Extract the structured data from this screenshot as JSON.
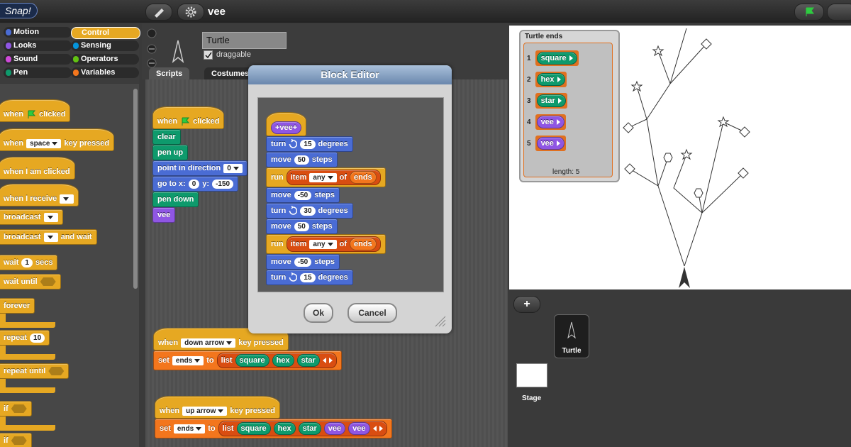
{
  "topbar": {
    "logo": "Snap!",
    "project": "vee"
  },
  "categories": [
    {
      "name": "Motion",
      "color": "#4a6cd4"
    },
    {
      "name": "Control",
      "color": "#e6a822",
      "selected": true
    },
    {
      "name": "Looks",
      "color": "#8f56e3"
    },
    {
      "name": "Sensing",
      "color": "#0494dc"
    },
    {
      "name": "Sound",
      "color": "#cf4ad9"
    },
    {
      "name": "Operators",
      "color": "#62c213"
    },
    {
      "name": "Pen",
      "color": "#0e9a6c"
    },
    {
      "name": "Variables",
      "color": "#f3761d"
    }
  ],
  "palette": {
    "color": "#e6a822",
    "blocks": [
      {
        "hat": true,
        "parts": [
          "when",
          "clicked"
        ],
        "icon": "flag"
      },
      {
        "hat": true,
        "parts": [
          "when",
          {
            "dropdown": "space"
          },
          "key pressed"
        ]
      },
      {
        "hat": true,
        "parts": [
          "when I am clicked"
        ]
      },
      {
        "hat": true,
        "parts": [
          "when I receive",
          {
            "empty": "dropdown"
          }
        ]
      },
      {
        "parts": [
          "broadcast",
          {
            "empty": "dropdown"
          }
        ]
      },
      {
        "parts": [
          "broadcast",
          {
            "empty": "dropdown"
          },
          "and wait"
        ]
      },
      {
        "parts": [
          "wait",
          {
            "input": "1"
          },
          "secs"
        ]
      },
      {
        "parts": [
          "wait until",
          {
            "empty": "boolean"
          }
        ]
      },
      {
        "parts": [
          "forever"
        ],
        "shape": "c"
      },
      {
        "parts": [
          "repeat",
          {
            "input": "10"
          }
        ],
        "shape": "c"
      },
      {
        "parts": [
          "repeat until",
          {
            "empty": "boolean"
          }
        ],
        "shape": "c"
      },
      {
        "parts": [
          "if",
          {
            "empty": "boolean"
          }
        ],
        "shape": "c"
      },
      {
        "parts": [
          "if",
          {
            "empty": "boolean"
          }
        ]
      }
    ]
  },
  "sprite": {
    "name": "Turtle",
    "draggable": "draggable",
    "tabs": [
      "Scripts",
      "Costumes"
    ]
  },
  "scripts": [
    {
      "blocks": [
        {
          "color": "#e6a822",
          "hat": true,
          "parts": [
            "when",
            "clicked"
          ],
          "icon": "flag"
        },
        {
          "color": "#0e9a6c",
          "parts": [
            "clear"
          ]
        },
        {
          "color": "#0e9a6c",
          "parts": [
            "pen up"
          ]
        },
        {
          "color": "#4a6cd4",
          "parts": [
            "point in direction",
            {
              "dropdown": "0"
            }
          ]
        },
        {
          "color": "#4a6cd4",
          "parts": [
            "go to x:",
            {
              "input": "0"
            },
            "y:",
            {
              "input": "-150"
            }
          ]
        },
        {
          "color": "#0e9a6c",
          "parts": [
            "pen down"
          ]
        },
        {
          "color": "#8f56e3",
          "parts": [
            "vee"
          ]
        }
      ]
    },
    {
      "blocks": [
        {
          "color": "#e6a822",
          "hat": true,
          "parts": [
            "when",
            {
              "dropdown": "down arrow"
            },
            "key pressed"
          ]
        },
        {
          "color": "#f3761d",
          "parts": [
            "set",
            {
              "dropdown": "ends"
            },
            "to",
            {
              "reporter": {
                "color": "#d94d11",
                "variadic": true,
                "parts": [
                  "list",
                  {
                    "reporter": {
                      "color": "#0e9a6c",
                      "parts": [
                        "square"
                      ]
                    }
                  },
                  {
                    "reporter": {
                      "color": "#0e9a6c",
                      "parts": [
                        "hex"
                      ]
                    }
                  },
                  {
                    "reporter": {
                      "color": "#0e9a6c",
                      "parts": [
                        "star"
                      ]
                    }
                  }
                ]
              }
            }
          ]
        }
      ]
    },
    {
      "blocks": [
        {
          "color": "#e6a822",
          "hat": true,
          "parts": [
            "when",
            {
              "dropdown": "up arrow"
            },
            "key pressed"
          ]
        },
        {
          "color": "#f3761d",
          "parts": [
            "set",
            {
              "dropdown": "ends"
            },
            "to",
            {
              "reporter": {
                "color": "#d94d11",
                "variadic": true,
                "parts": [
                  "list",
                  {
                    "reporter": {
                      "color": "#0e9a6c",
                      "parts": [
                        "square"
                      ]
                    }
                  },
                  {
                    "reporter": {
                      "color": "#0e9a6c",
                      "parts": [
                        "hex"
                      ]
                    }
                  },
                  {
                    "reporter": {
                      "color": "#0e9a6c",
                      "parts": [
                        "star"
                      ]
                    }
                  },
                  {
                    "reporter": {
                      "color": "#8f56e3",
                      "parts": [
                        "vee"
                      ]
                    }
                  },
                  {
                    "reporter": {
                      "color": "#8f56e3",
                      "parts": [
                        "vee"
                      ]
                    }
                  }
                ]
              }
            }
          ]
        }
      ]
    }
  ],
  "block_editor": {
    "title": "Block Editor",
    "blocks": [
      {
        "color": "#e6a822",
        "hat": true,
        "parts": [
          {
            "reporter": {
              "color": "#8f56e3",
              "parts": [
                "+vee+"
              ]
            }
          }
        ]
      },
      {
        "color": "#4a6cd4",
        "parts": [
          "turn",
          {
            "input": "15"
          },
          "degrees"
        ],
        "icon": "clockwise"
      },
      {
        "color": "#4a6cd4",
        "parts": [
          "move",
          {
            "input": "50"
          },
          "steps"
        ]
      },
      {
        "color": "#e6a822",
        "parts": [
          "run",
          {
            "reporter": {
              "color": "#d94d11",
              "parts": [
                "item",
                {
                  "dropdown": "any"
                },
                "of",
                {
                  "reporter": {
                    "color": "#f3761d",
                    "parts": [
                      "ends"
                    ]
                  }
                }
              ]
            }
          }
        ]
      },
      {
        "color": "#4a6cd4",
        "parts": [
          "move",
          {
            "input": "-50"
          },
          "steps"
        ]
      },
      {
        "color": "#4a6cd4",
        "parts": [
          "turn",
          {
            "input": "30"
          },
          "degrees"
        ],
        "icon": "clockwise"
      },
      {
        "color": "#4a6cd4",
        "parts": [
          "move",
          {
            "input": "50"
          },
          "steps"
        ]
      },
      {
        "color": "#e6a822",
        "parts": [
          "run",
          {
            "reporter": {
              "color": "#d94d11",
              "parts": [
                "item",
                {
                  "dropdown": "any"
                },
                "of",
                {
                  "reporter": {
                    "color": "#f3761d",
                    "parts": [
                      "ends"
                    ]
                  }
                }
              ]
            }
          }
        ]
      },
      {
        "color": "#4a6cd4",
        "parts": [
          "move",
          {
            "input": "-50"
          },
          "steps"
        ]
      },
      {
        "color": "#4a6cd4",
        "parts": [
          "turn",
          {
            "input": "15"
          },
          "degrees"
        ],
        "icon": "clockwise"
      }
    ],
    "buttons": [
      "Ok",
      "Cancel"
    ]
  },
  "watcher": {
    "title": "Turtle ends",
    "items": [
      {
        "index": "1",
        "value": "square",
        "color": "#0e9a6c"
      },
      {
        "index": "2",
        "value": "hex",
        "color": "#0e9a6c"
      },
      {
        "index": "3",
        "value": "star",
        "color": "#0e9a6c"
      },
      {
        "index": "4",
        "value": "vee",
        "color": "#8f56e3"
      },
      {
        "index": "5",
        "value": "vee",
        "color": "#8f56e3"
      }
    ],
    "length": "length: 5"
  },
  "corral": {
    "add": "+",
    "sprites": [
      "Turtle"
    ],
    "stage": "Stage"
  }
}
